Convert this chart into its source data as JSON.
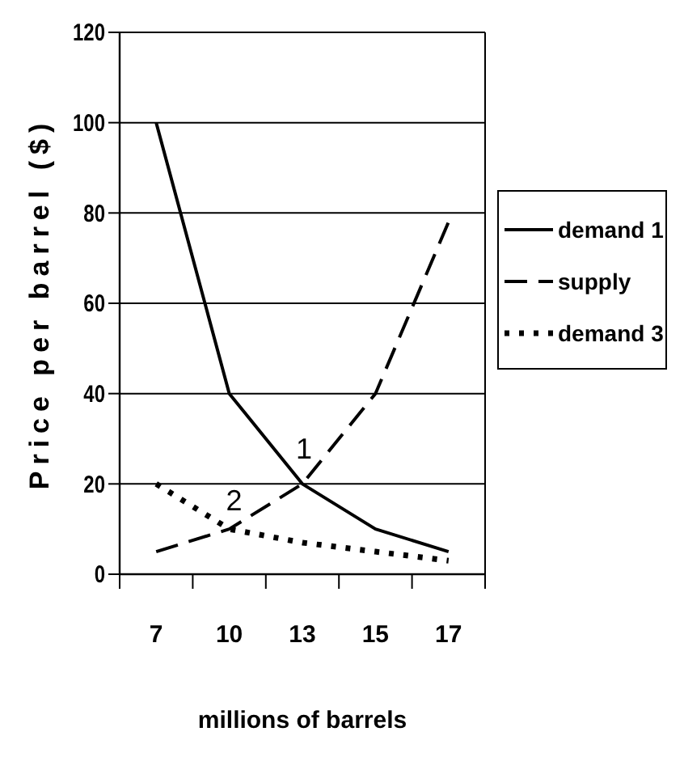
{
  "chart_data": {
    "type": "line",
    "xlabel": "millions of barrels",
    "ylabel": "Price per barrel ($)",
    "categories": [
      "7",
      "10",
      "13",
      "15",
      "17"
    ],
    "series": [
      {
        "name": "demand 1",
        "color": "#000000",
        "values": [
          100,
          40,
          20,
          10,
          5
        ],
        "line_style": "solid"
      },
      {
        "name": "supply",
        "color": "#000000",
        "values": [
          5,
          10,
          20,
          40,
          78
        ],
        "line_style": "dashed"
      },
      {
        "name": "demand 3",
        "color": "#000000",
        "values": [
          20,
          10,
          7,
          5,
          3
        ],
        "line_style": "dotted"
      }
    ],
    "ylim": [
      0,
      120
    ],
    "yticks": [
      0,
      20,
      40,
      60,
      80,
      100,
      120
    ],
    "grid": "y",
    "legend": "right",
    "annotations": [
      {
        "text": "1",
        "x": "13",
        "y": 20
      },
      {
        "text": "2",
        "x": "10",
        "y": 10
      }
    ]
  }
}
